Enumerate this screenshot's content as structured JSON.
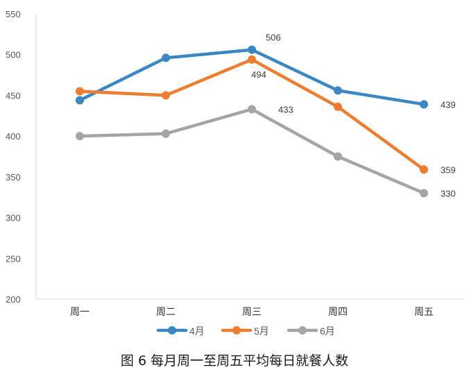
{
  "chart_data": {
    "type": "line",
    "title": "",
    "xlabel": "",
    "ylabel": "",
    "categories": [
      "周一",
      "周二",
      "周三",
      "周四",
      "周五"
    ],
    "ylim": [
      200,
      550
    ],
    "yticks": [
      200,
      250,
      300,
      350,
      400,
      450,
      500,
      550
    ],
    "grid": false,
    "legend_position": "bottom",
    "series": [
      {
        "name": "4月",
        "color": "#3A87C4",
        "values": [
          444,
          496,
          506,
          456,
          439
        ],
        "labels": [
          null,
          null,
          "506",
          null,
          "439"
        ]
      },
      {
        "name": "5月",
        "color": "#ED7D31",
        "values": [
          455,
          450,
          494,
          436,
          359
        ],
        "labels": [
          null,
          null,
          "494",
          null,
          "359"
        ]
      },
      {
        "name": "6月",
        "color": "#A5A5A5",
        "values": [
          400,
          403,
          433,
          375,
          330
        ],
        "labels": [
          null,
          null,
          "433",
          null,
          "330"
        ]
      }
    ]
  },
  "caption": "图 6  每月周一至周五平均每日就餐人数"
}
